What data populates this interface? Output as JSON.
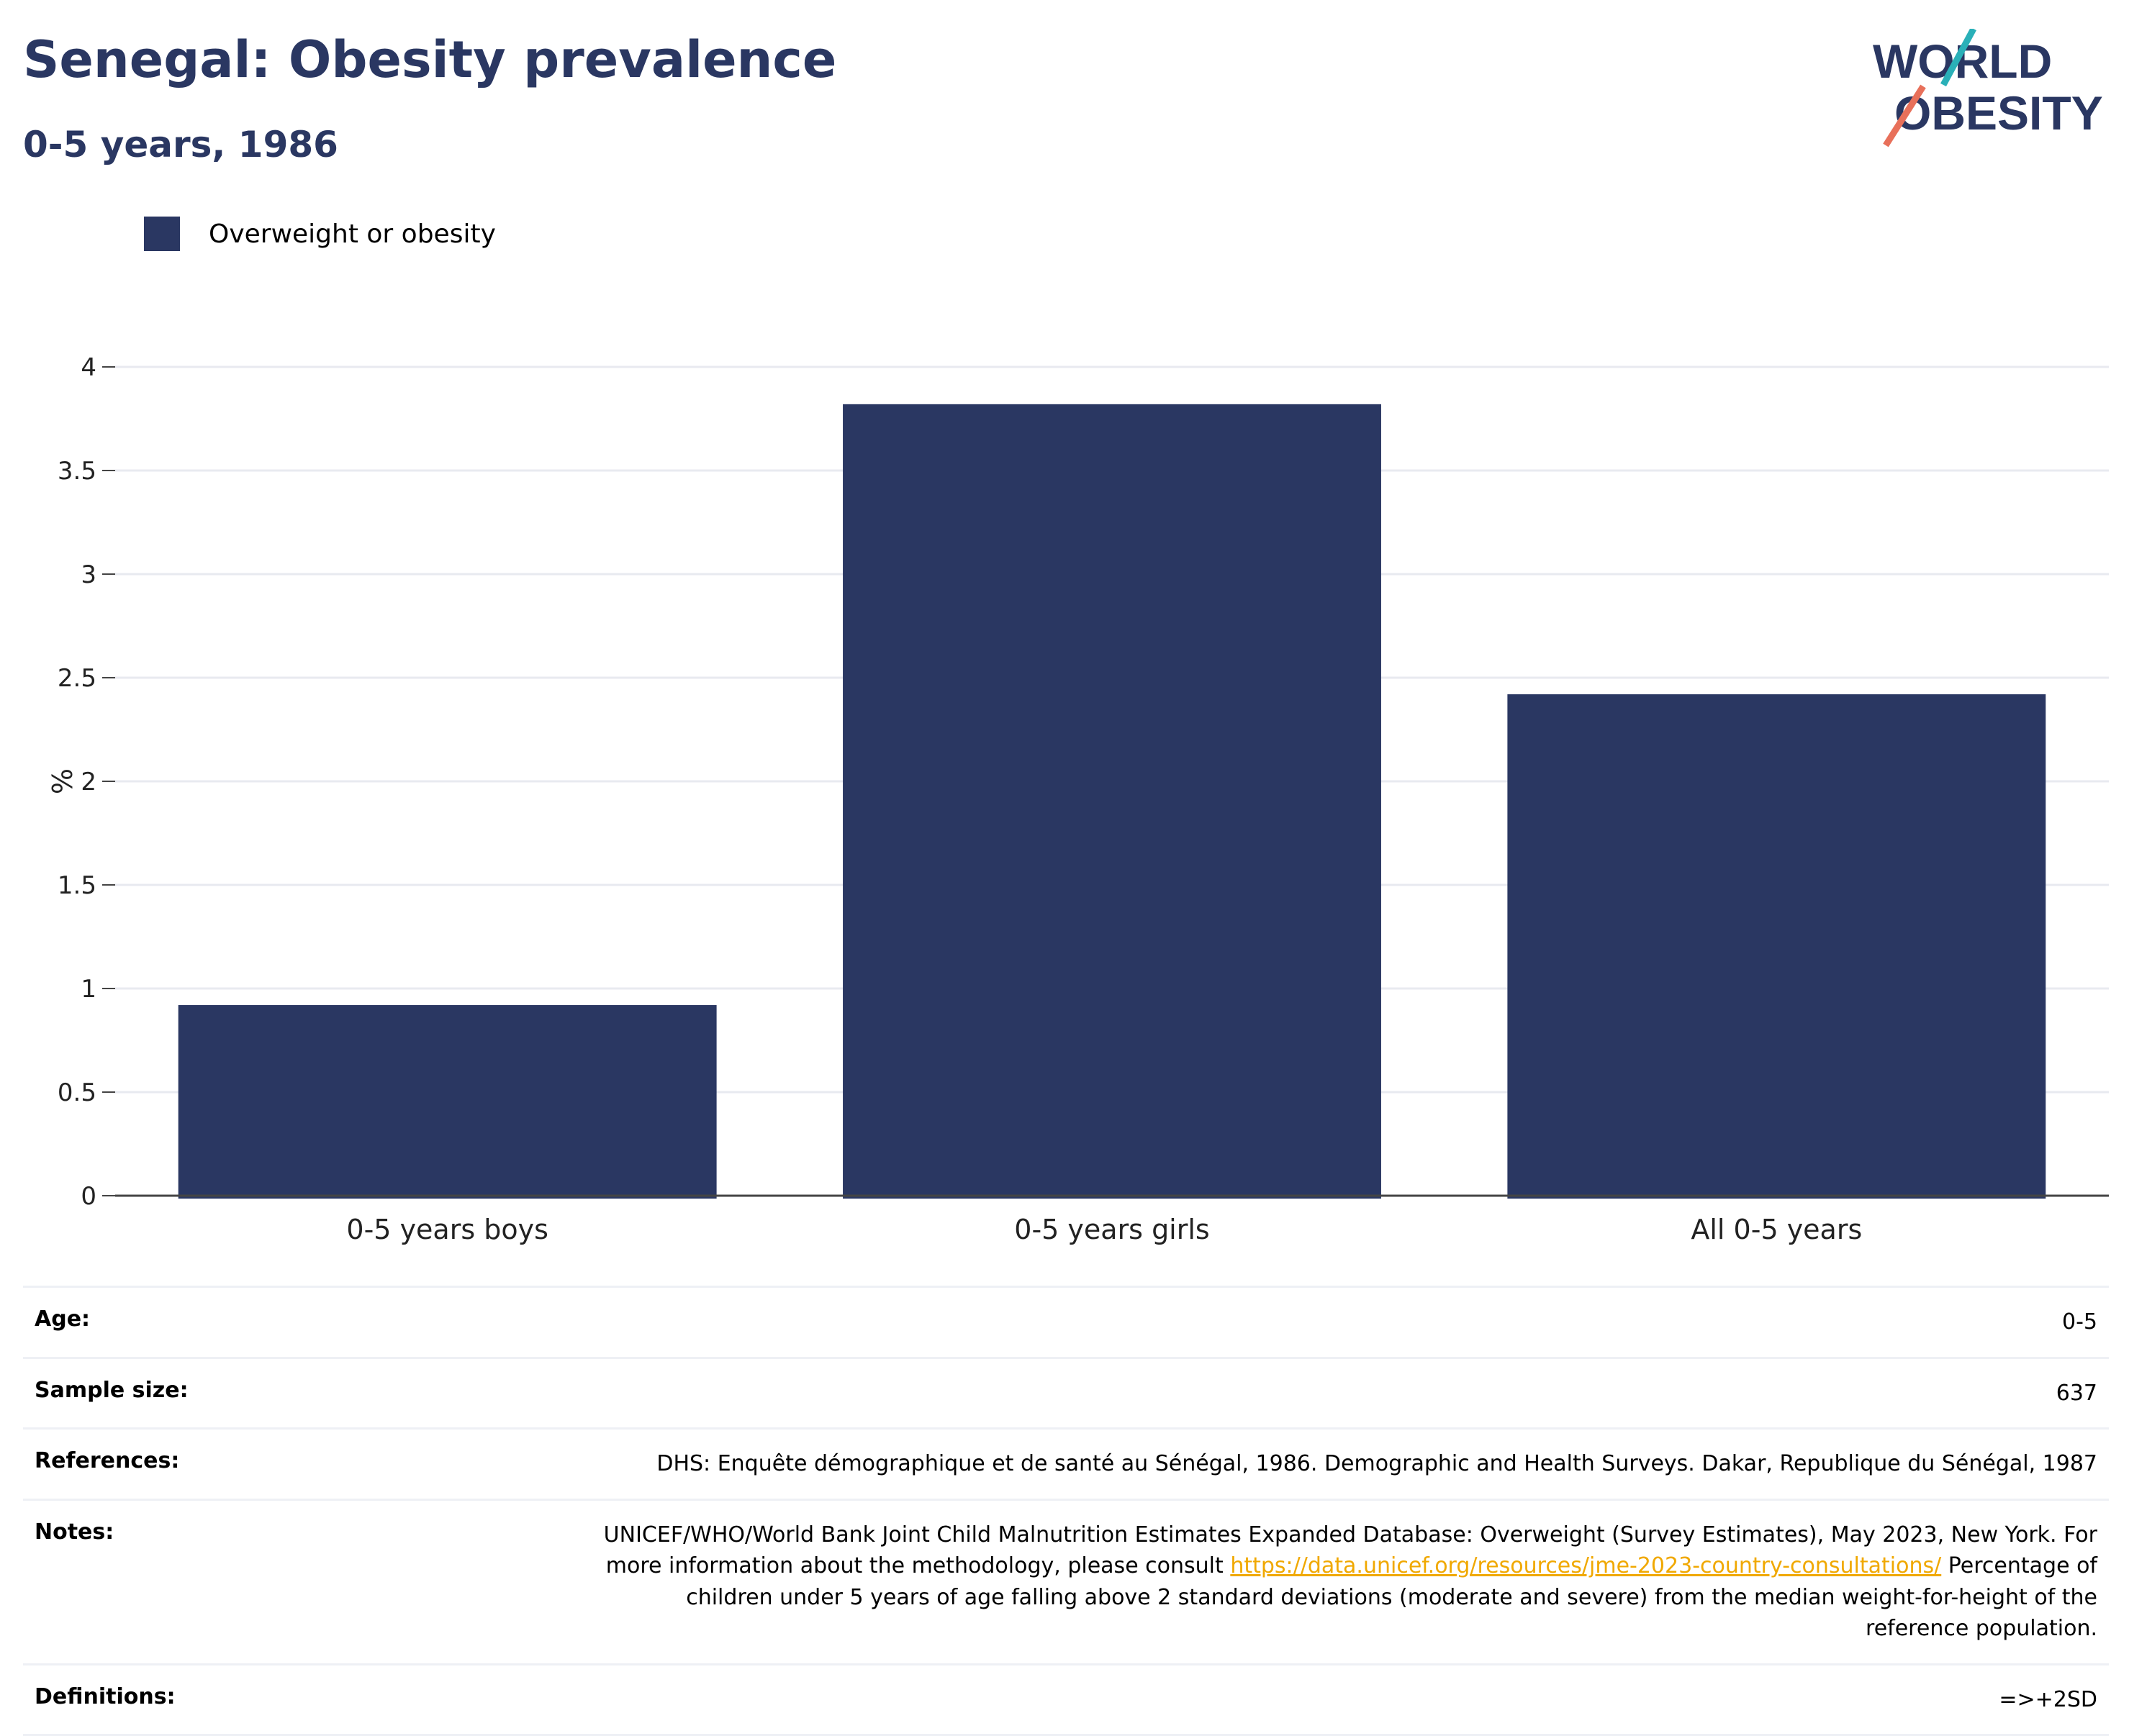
{
  "header": {
    "title": "Senegal: Obesity prevalence",
    "subtitle": "0-5 years, 1986"
  },
  "logo": {
    "line1": "WORLD",
    "line2": "OBESITY"
  },
  "colors": {
    "bar": "#2a3762",
    "grid": "#e8eaf0",
    "link": "#f0a800",
    "accent_teal": "#2ab0b8",
    "accent_coral": "#e8705a"
  },
  "chart_data": {
    "type": "bar",
    "categories": [
      "0-5 years boys",
      "0-5 years girls",
      "All 0-5 years"
    ],
    "series": [
      {
        "name": "Overweight or obesity",
        "values": [
          0.92,
          3.82,
          2.42
        ]
      }
    ],
    "ylabel": "%",
    "ylim": [
      0,
      4
    ],
    "yticks": [
      "0",
      "0.5",
      "1",
      "1.5",
      "2",
      "2.5",
      "3",
      "3.5",
      "4"
    ],
    "grid": true,
    "legend": "top-left"
  },
  "meta": {
    "age_label": "Age:",
    "age_value": "0-5",
    "sample_label": "Sample size:",
    "sample_value": "637",
    "references_label": "References:",
    "references_value": "DHS: Enquête démographique et de santé au Sénégal, 1986. Demographic and Health Surveys. Dakar, Republique du Sénégal, 1987",
    "notes_label": "Notes:",
    "notes_pre": "UNICEF/WHO/World Bank Joint Child Malnutrition Estimates Expanded Database: Overweight (Survey Estimates), May 2023, New York. For more information about the methodology, please consult ",
    "notes_link": "https://data.unicef.org/resources/jme-2023-country-consultations/",
    "notes_post": " Percentage of children under 5 years of age falling above 2 standard deviations (moderate and severe) from the median weight-for-height of the reference population.",
    "definitions_label": "Definitions:",
    "definitions_value": "=>+2SD"
  }
}
